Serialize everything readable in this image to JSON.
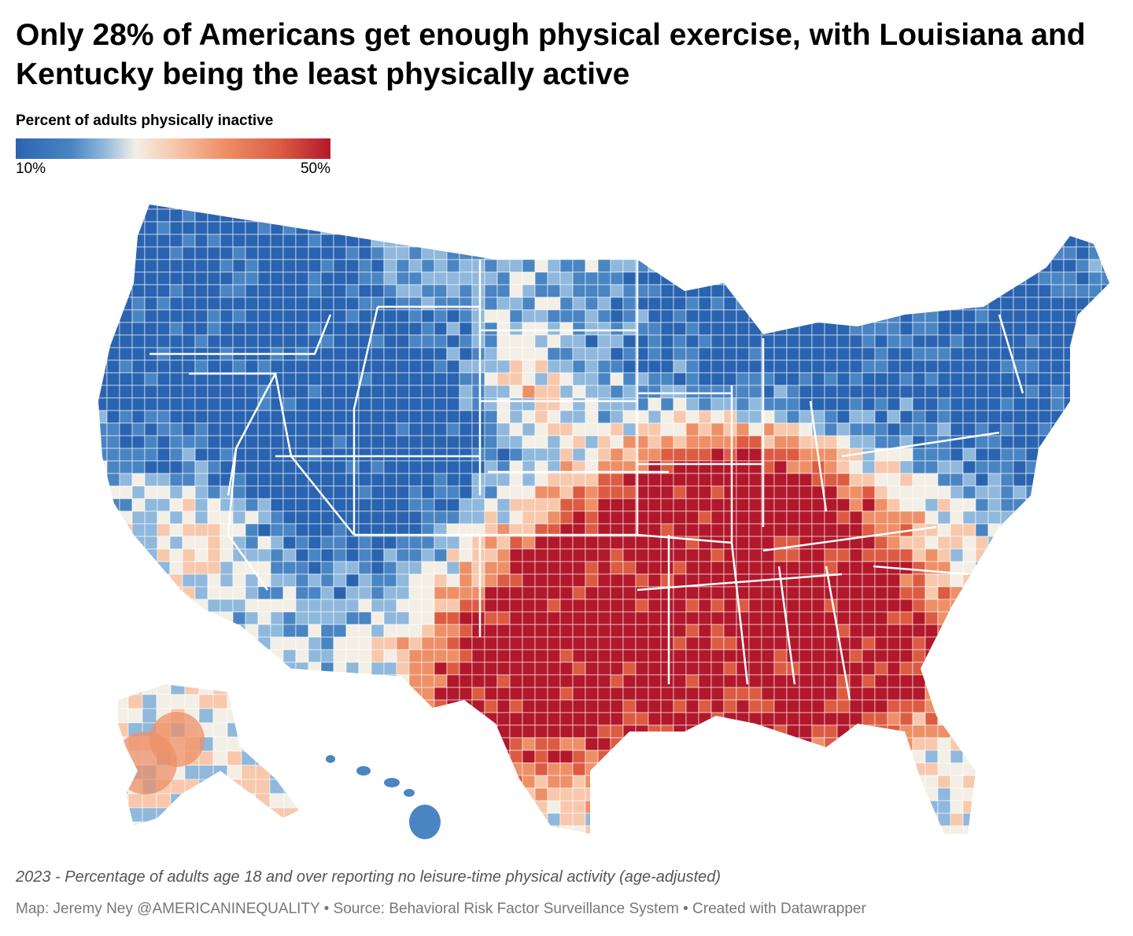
{
  "title": "Only 28% of Americans get enough physical exercise, with Louisiana and Kentucky being the least physically active",
  "legend": {
    "title": "Percent of adults physically inactive",
    "min_label": "10%",
    "max_label": "50%",
    "colors": [
      "#2a64b0",
      "#4a85c3",
      "#8fb8dc",
      "#f3efe6",
      "#f8c8ad",
      "#ee9067",
      "#dc5c43",
      "#b2182b"
    ]
  },
  "map": {
    "type": "choropleth",
    "unit": "US counties",
    "no_data_color": "#dcdcdc",
    "regions": [
      {
        "region": "Pacific Northwest",
        "level": "low"
      },
      {
        "region": "Mountain West / Colorado / Utah",
        "level": "low"
      },
      {
        "region": "Upper Midwest",
        "level": "low"
      },
      {
        "region": "New England / Northeast",
        "level": "low"
      },
      {
        "region": "Hawaii",
        "level": "low"
      },
      {
        "region": "Kentucky",
        "level": "high"
      },
      {
        "region": "Louisiana / Mississippi / Arkansas",
        "level": "high"
      },
      {
        "region": "Georgia / Alabama",
        "level": "high"
      },
      {
        "region": "South and West Texas",
        "level": "high"
      },
      {
        "region": "Alaska (southwest)",
        "level": "high"
      }
    ]
  },
  "notes": "2023 - Percentage of adults age 18 and over reporting no leisure-time physical activity (age-adjusted)",
  "credits": "Map: Jeremy Ney @AMERICANINEQUALITY • Source: Behavioral Risk Factor Surveillance System • Created with Datawrapper"
}
